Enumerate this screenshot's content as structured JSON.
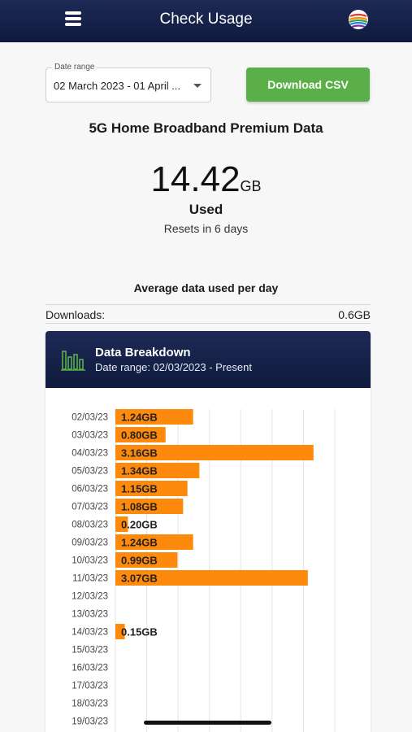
{
  "header": {
    "title": "Check Usage",
    "menu_icon": "hamburger-menu-icon",
    "logo_icon": "colorful-globe-logo-icon"
  },
  "date_range": {
    "label": "Date range",
    "value": "02 March 2023 - 01 April ..."
  },
  "download_button": {
    "label": "Download CSV",
    "color": "#5aaf48"
  },
  "plan": {
    "name": "5G Home Broadband Premium Data"
  },
  "usage": {
    "amount": "14.42",
    "unit": "GB",
    "status": "Used",
    "reset_text": "Resets in 6 days"
  },
  "average": {
    "title": "Average data used per day",
    "label": "Downloads:",
    "value": "0.6GB"
  },
  "breakdown": {
    "title": "Data Breakdown",
    "subtitle": "Date range: 02/03/2023 - Present",
    "icon": "bar-chart-icon"
  },
  "colors": {
    "header_bg": "#0f1a3e",
    "bar": "#fd8a0c",
    "button": "#5aaf48"
  },
  "chart_data": {
    "type": "bar",
    "orientation": "horizontal",
    "categories": [
      "02/03/23",
      "03/03/23",
      "04/03/23",
      "05/03/23",
      "06/03/23",
      "07/03/23",
      "08/03/23",
      "09/03/23",
      "10/03/23",
      "11/03/23",
      "12/03/23",
      "13/03/23",
      "14/03/23",
      "15/03/23",
      "16/03/23",
      "17/03/23",
      "18/03/23",
      "19/03/23"
    ],
    "values": [
      1.24,
      0.8,
      3.16,
      1.34,
      1.15,
      1.08,
      0.2,
      1.24,
      0.99,
      3.07,
      null,
      null,
      0.15,
      null,
      null,
      null,
      null,
      null
    ],
    "labels": [
      "1.24GB",
      "0.80GB",
      "3.16GB",
      "1.34GB",
      "1.15GB",
      "1.08GB",
      "0.20GB",
      "1.24GB",
      "0.99GB",
      "3.07GB",
      "",
      "",
      "0.15GB",
      "",
      "",
      "",
      "",
      ""
    ],
    "xlim": [
      0,
      3.5
    ],
    "grid": true,
    "bar_color": "#fd8a0c"
  }
}
